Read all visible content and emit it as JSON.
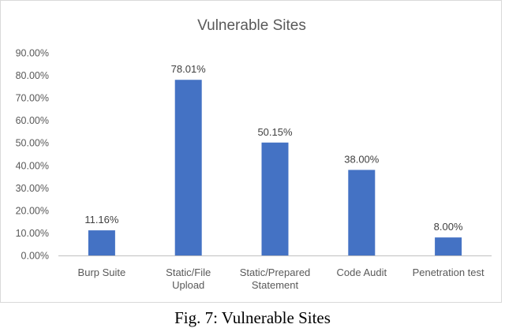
{
  "chart_data": {
    "type": "bar",
    "title": "Vulnerable Sites",
    "categories": [
      [
        "Burp Suite"
      ],
      [
        "Static/File",
        "Upload"
      ],
      [
        "Static/Prepared",
        "Statement"
      ],
      [
        "Code Audit"
      ],
      [
        "Penetration test"
      ]
    ],
    "values": [
      11.16,
      78.01,
      50.15,
      38.0,
      8.0
    ],
    "data_labels": [
      "11.16%",
      "78.01%",
      "50.15%",
      "38.00%",
      "8.00%"
    ],
    "ylim": [
      0,
      90
    ],
    "yticks": [
      0,
      10,
      20,
      30,
      40,
      50,
      60,
      70,
      80,
      90
    ],
    "ytick_labels": [
      "0.00%",
      "10.00%",
      "20.00%",
      "30.00%",
      "40.00%",
      "50.00%",
      "60.00%",
      "70.00%",
      "80.00%",
      "90.00%"
    ],
    "grid": false,
    "bar_color": "#4472C4",
    "text_color": "#595959",
    "axis_color": "#bfbfbf"
  },
  "caption": "Fig. 7: Vulnerable Sites"
}
